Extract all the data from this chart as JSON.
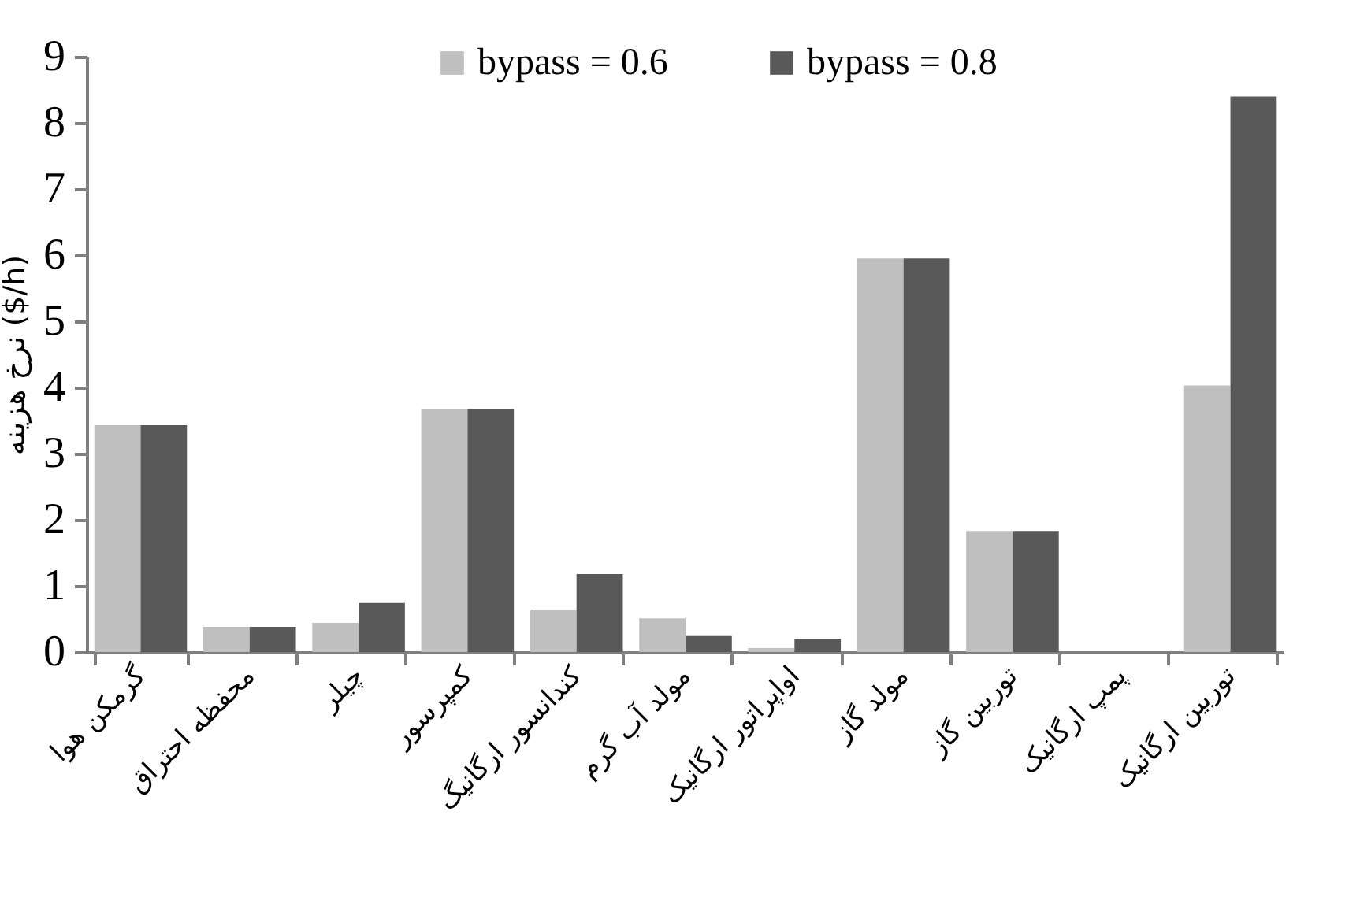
{
  "chart_data": {
    "type": "bar",
    "ylabel": "نرخ هزینه ($/h)",
    "categories": [
      "گرمکن هوا",
      "محفظه احتراق",
      "چیلر",
      "کمپرسور",
      "کندانسور ارگانیگ",
      "مولد آب گرم",
      "اواپراتور ارگانیک",
      "مولد گاز",
      "توربین گاز",
      "پمپ ارگانیک",
      "توربین ارگانیک"
    ],
    "series": [
      {
        "name": "bypass = 0.6",
        "color": "#bfbfbf",
        "values": [
          3.43,
          0.38,
          0.44,
          3.67,
          0.63,
          0.51,
          0.06,
          5.95,
          1.83,
          0,
          4.03
        ]
      },
      {
        "name": "bypass = 0.8",
        "color": "#595959",
        "values": [
          3.43,
          0.38,
          0.74,
          3.67,
          1.18,
          0.24,
          0.2,
          5.95,
          1.83,
          0,
          8.4
        ]
      }
    ],
    "ylim": [
      0,
      9
    ],
    "yticks": [
      0,
      1,
      2,
      3,
      4,
      5,
      6,
      7,
      8,
      9
    ],
    "grid": false,
    "legend": "top"
  }
}
